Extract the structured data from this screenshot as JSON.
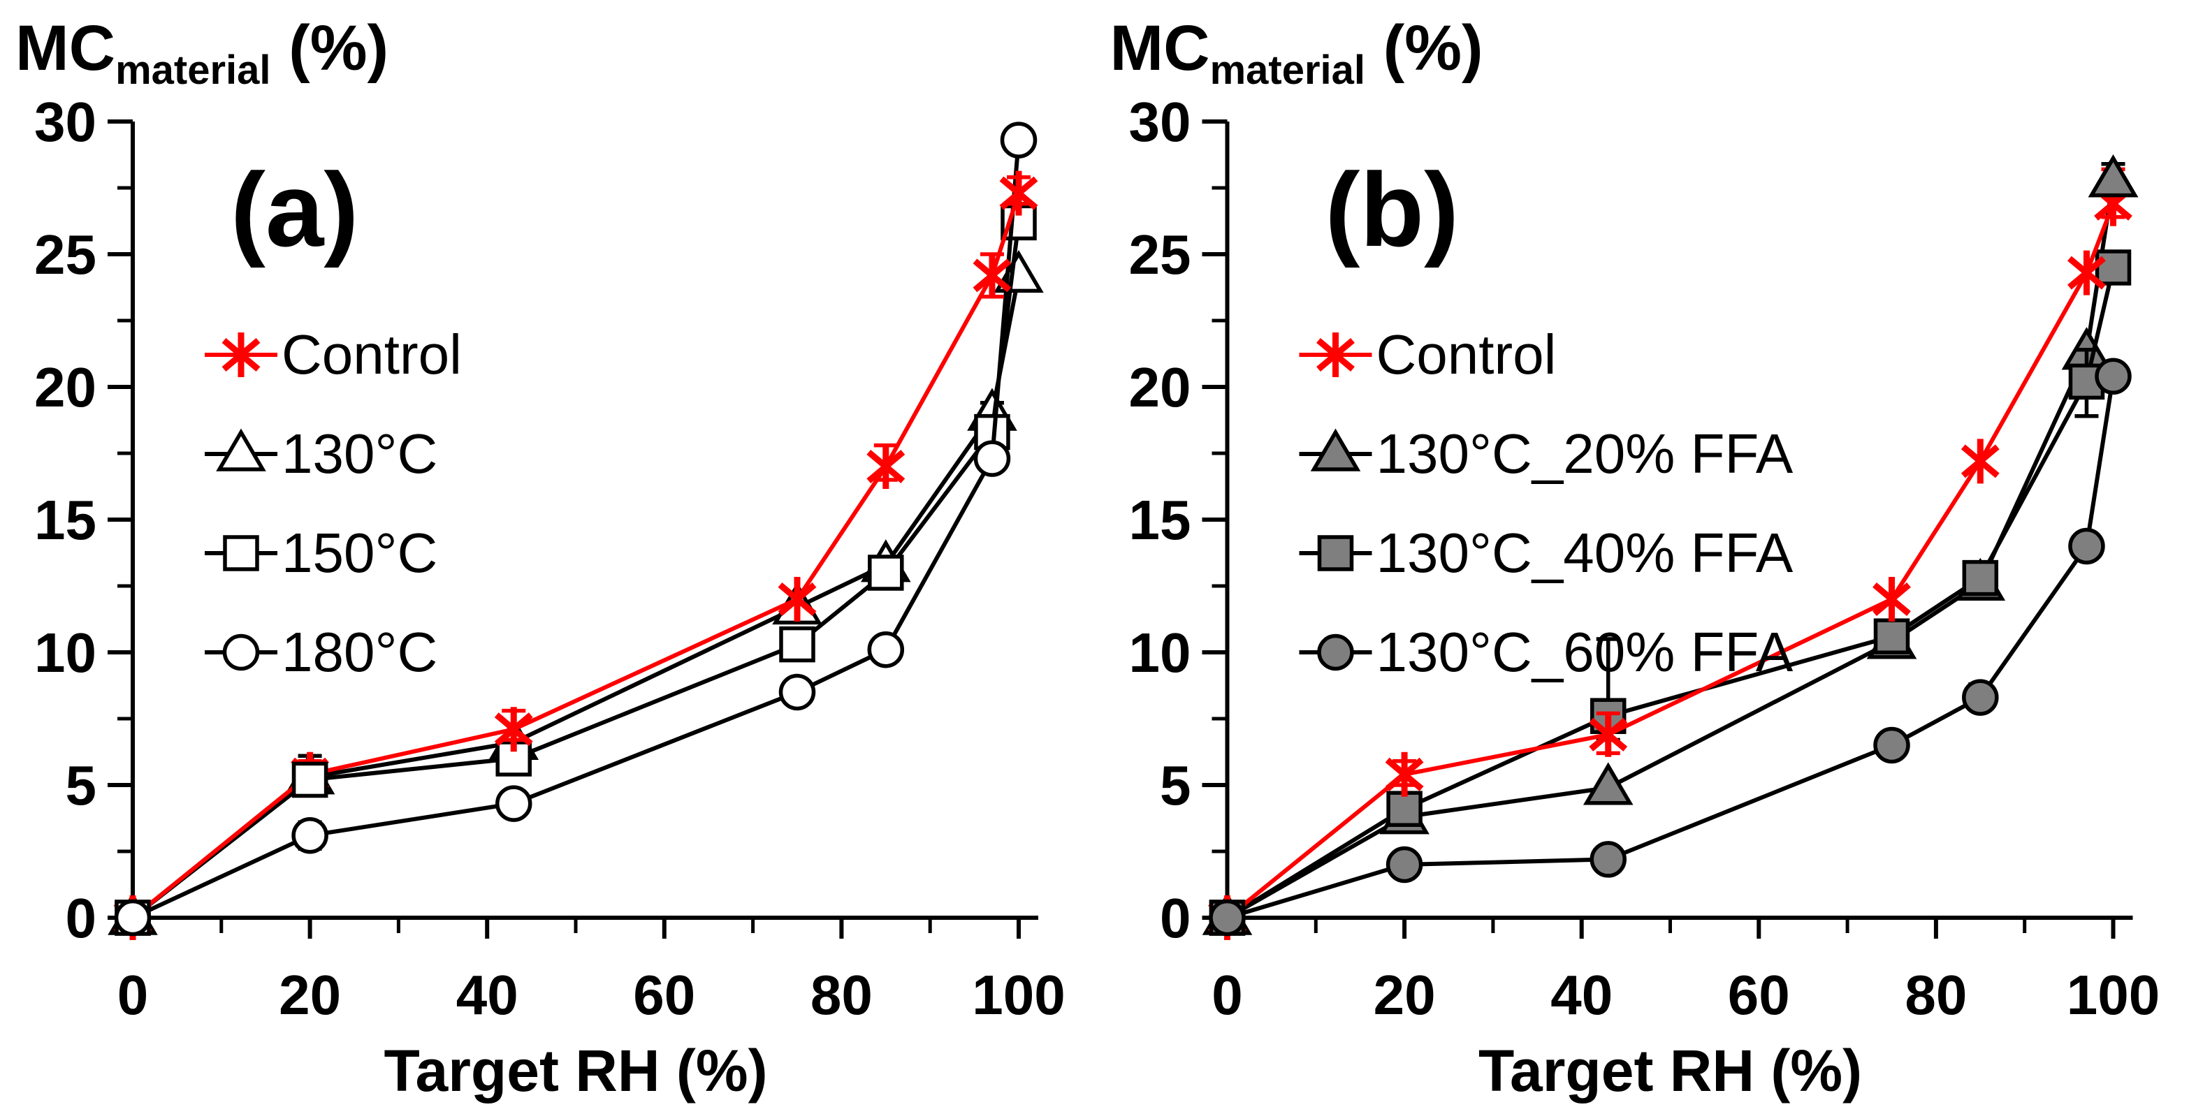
{
  "figure": {
    "background": "#ffffff",
    "text_color": "#000000"
  },
  "chart_data": [
    {
      "type": "line",
      "panel_label": "(a)",
      "title_main": "MC",
      "title_sub": "material",
      "title_unit": "(%)",
      "xlabel": "Target RH (%)",
      "xlim": [
        0,
        100
      ],
      "ylim": [
        0,
        30
      ],
      "x_major_ticks": [
        0,
        20,
        40,
        60,
        80,
        100
      ],
      "x_minor_ticks": [
        10,
        30,
        50,
        70,
        90
      ],
      "y_major_ticks": [
        0,
        5,
        10,
        15,
        20,
        25,
        30
      ],
      "y_minor_ticks": [
        2.5,
        7.5,
        12.5,
        17.5,
        22.5,
        27.5
      ],
      "grid": false,
      "legend_position": "upper-left-inside",
      "x": [
        0,
        20,
        43,
        75,
        85,
        97,
        100
      ],
      "series": [
        {
          "name": "Control",
          "marker": "star",
          "color": "#FF0000",
          "fill": "none",
          "values": [
            0,
            5.4,
            7.1,
            12.0,
            17.0,
            24.2,
            27.3
          ],
          "error_bars": [
            {
              "i": 1,
              "plus": 0.5,
              "minus": 0.3
            },
            {
              "i": 2,
              "plus": 0.7,
              "minus": 0.4
            },
            {
              "i": 4,
              "plus": 0.8,
              "minus": 0.5
            },
            {
              "i": 5,
              "plus": 0.8,
              "minus": 0.8
            },
            {
              "i": 6,
              "plus": 0.6,
              "minus": 0.4
            }
          ]
        },
        {
          "name": "130°C",
          "marker": "triangle",
          "color": "#000000",
          "fill": "#FFFFFF",
          "values": [
            0,
            5.3,
            6.6,
            11.7,
            13.3,
            19.0,
            24.2
          ],
          "error_bars": [
            {
              "i": 5,
              "plus": 0.4,
              "minus": 0.4
            }
          ]
        },
        {
          "name": "150°C",
          "marker": "square",
          "color": "#000000",
          "fill": "#FFFFFF",
          "values": [
            0,
            5.2,
            6.0,
            10.3,
            13.0,
            18.3,
            26.2
          ],
          "error_bars": [
            {
              "i": 1,
              "plus": 0.9,
              "minus": 0.3
            }
          ]
        },
        {
          "name": "180°C",
          "marker": "circle",
          "color": "#000000",
          "fill": "#FFFFFF",
          "values": [
            0,
            3.1,
            4.3,
            8.5,
            10.1,
            17.3,
            29.3
          ],
          "error_bars": [
            {
              "i": 1,
              "plus": 0.5,
              "minus": 0.5
            },
            {
              "i": 4,
              "plus": 0.4,
              "minus": 0.4
            }
          ]
        }
      ],
      "redraw_markers_on_top": [
        [
          2,
          0
        ],
        [
          3,
          0
        ],
        [
          2,
          1
        ]
      ]
    },
    {
      "type": "line",
      "panel_label": "(b)",
      "title_main": "MC",
      "title_sub": "material",
      "title_unit": "(%)",
      "xlabel": "Target RH (%)",
      "xlim": [
        0,
        100
      ],
      "ylim": [
        0,
        30
      ],
      "x_major_ticks": [
        0,
        20,
        40,
        60,
        80,
        100
      ],
      "x_minor_ticks": [
        10,
        30,
        50,
        70,
        90
      ],
      "y_major_ticks": [
        0,
        5,
        10,
        15,
        20,
        25,
        30
      ],
      "y_minor_ticks": [
        2.5,
        7.5,
        12.5,
        17.5,
        22.5,
        27.5
      ],
      "grid": false,
      "legend_position": "upper-left-inside",
      "x": [
        0,
        20,
        43,
        75,
        85,
        97,
        100
      ],
      "series": [
        {
          "name": "Control",
          "marker": "star",
          "color": "#FF0000",
          "fill": "none",
          "values": [
            0,
            5.4,
            6.9,
            12.0,
            17.2,
            24.3,
            26.9
          ],
          "error_bars": [
            {
              "i": 1,
              "plus": 0.5,
              "minus": 0.4
            },
            {
              "i": 2,
              "plus": 0.8,
              "minus": 0.7
            },
            {
              "i": 6,
              "plus": 1.3,
              "minus": 0.5
            }
          ]
        },
        {
          "name": "130°C_20% FFA",
          "marker": "triangle",
          "color": "#000000",
          "fill": "#7F7F7F",
          "values": [
            0,
            3.8,
            4.9,
            10.4,
            12.6,
            21.3,
            27.8
          ],
          "error_bars": [
            {
              "i": 6,
              "plus": 0.6,
              "minus": 0.5
            }
          ]
        },
        {
          "name": "130°C_40% FFA",
          "marker": "square",
          "color": "#000000",
          "fill": "#7F7F7F",
          "values": [
            0,
            4.1,
            7.6,
            10.6,
            12.8,
            20.2,
            24.5
          ],
          "error_bars": [
            {
              "i": 2,
              "plus": 2.9,
              "minus": 0.9
            },
            {
              "i": 4,
              "plus": 0.5,
              "minus": 0.5
            },
            {
              "i": 5,
              "plus": 1.2,
              "minus": 1.3
            }
          ]
        },
        {
          "name": "130°C_60% FFA",
          "marker": "circle",
          "color": "#000000",
          "fill": "#7F7F7F",
          "values": [
            0,
            2.0,
            2.2,
            6.5,
            8.3,
            14.0,
            20.4
          ],
          "error_bars": [
            {
              "i": 4,
              "plus": 0.5,
              "minus": 0.4
            },
            {
              "i": 5,
              "plus": 0.4,
              "minus": 0.4
            }
          ]
        }
      ],
      "redraw_markers_on_top": [
        [
          2,
          0
        ],
        [
          3,
          0
        ],
        [
          1,
          6
        ]
      ]
    }
  ]
}
